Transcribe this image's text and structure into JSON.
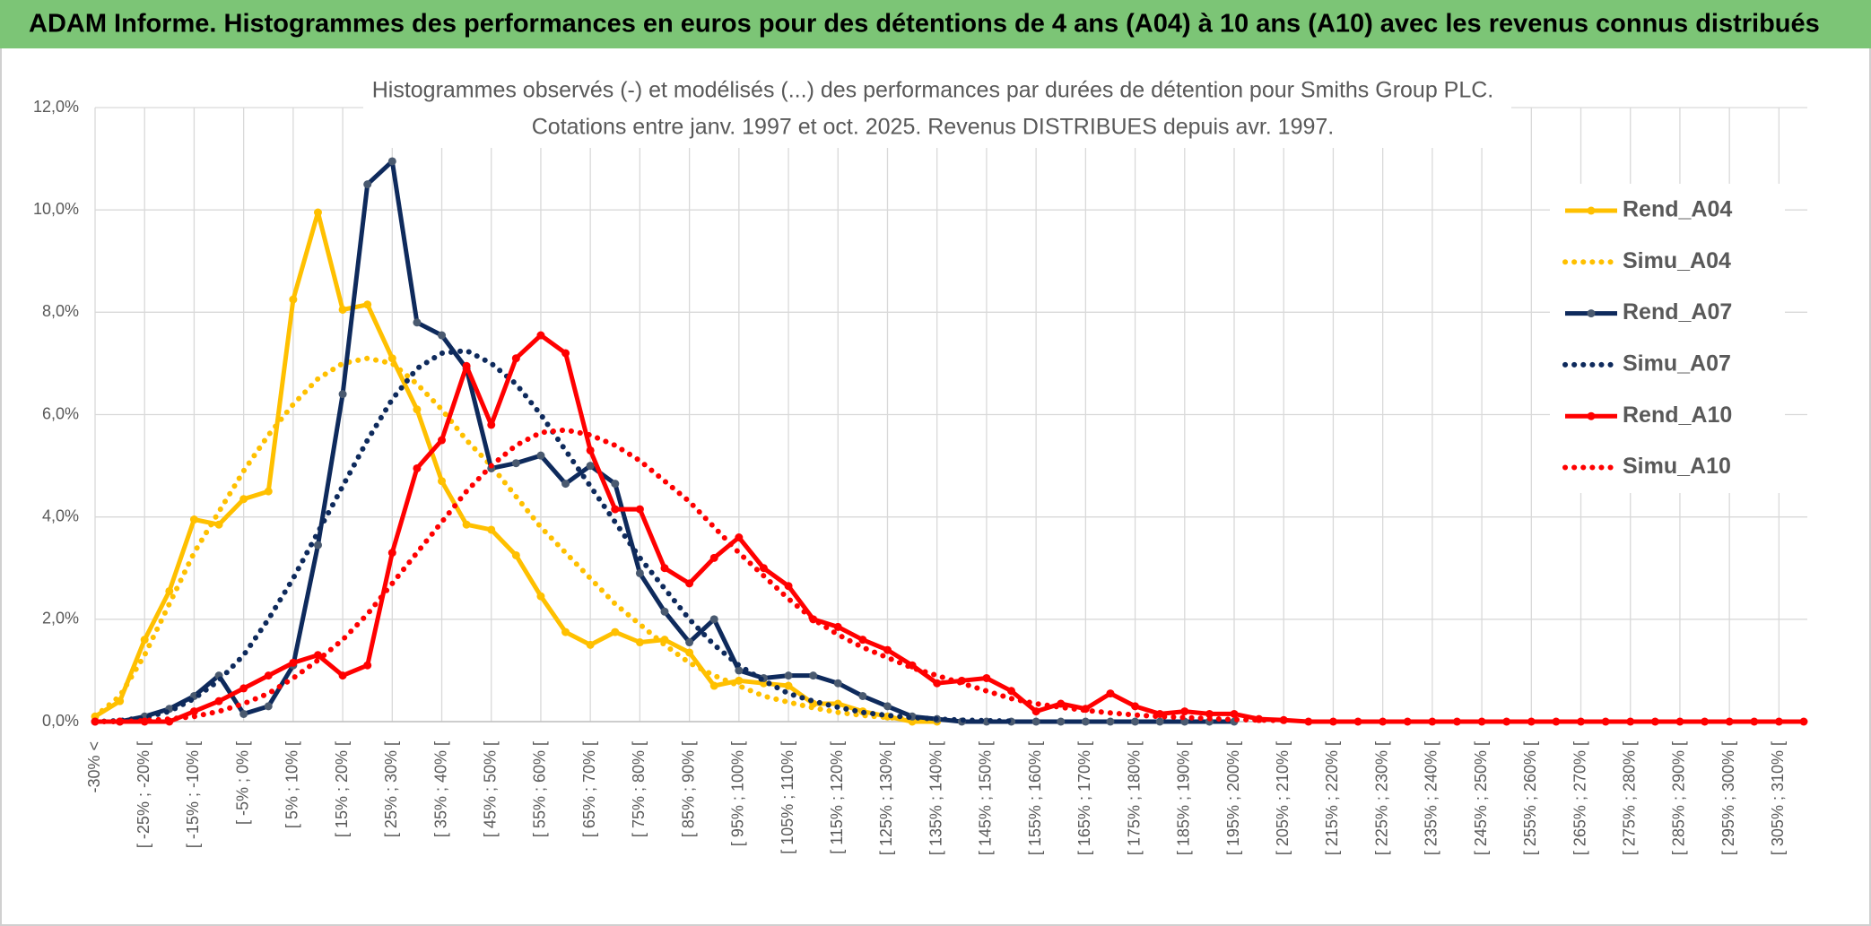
{
  "header": {
    "title": "ADAM Informe. Histogrammes des performances en euros pour des détentions de 4 ans (A04) à 10 ans (A10) avec les revenus connus distribués"
  },
  "chart_data": {
    "type": "line",
    "title": "Histogrammes observés (-) et modélisés (...) des performances par durées de détention pour Smiths Group PLC.",
    "subtitle": "Cotations entre janv. 1997 et oct. 2025. Revenus DISTRIBUES depuis avr. 1997.",
    "categories": [
      "-30% <",
      null,
      "[ -25% ; -20% [",
      null,
      "[ -15% ; -10% [",
      null,
      "[ -5% ; 0% [",
      null,
      "[ 5% ; 10% [",
      null,
      "[ 15% ; 20% [",
      null,
      "[ 25% ; 30% [",
      null,
      "[ 35% ; 40% [",
      null,
      "[ 45% ; 50% [",
      null,
      "[ 55% ; 60% [",
      null,
      "[ 65% ; 70% [",
      null,
      "[ 75% ; 80% [",
      null,
      "[ 85% ; 90% [",
      null,
      "[ 95% ; 100% [",
      null,
      "[ 105% ; 110% [",
      null,
      "[ 115% ; 120% [",
      null,
      "[ 125% ; 130% [",
      null,
      "[ 135% ; 140% [",
      null,
      "[ 145% ; 150% [",
      null,
      "[ 155% ; 160% [",
      null,
      "[ 165% ; 170% [",
      null,
      "[ 175% ; 180% [",
      null,
      "[ 185% ; 190% [",
      null,
      "[ 195% ; 200% [",
      null,
      "[ 205% ; 210% [",
      null,
      "[ 215% ; 220% [",
      null,
      "[ 225% ; 230% [",
      null,
      "[ 235% ; 240% [",
      null,
      "[ 245% ; 250% [",
      null,
      "[ 255% ; 260% [",
      null,
      "[ 265% ; 270% [",
      null,
      "[ 275% ; 280% [",
      null,
      "[ 285% ; 290% [",
      null,
      "[ 295% ; 300% [",
      null,
      "[ 305% ; 310% [",
      null
    ],
    "series": [
      {
        "name": "Rend_A04",
        "color": "#ffc000",
        "style": "solid",
        "markers": true,
        "values": [
          0.1,
          0.4,
          1.6,
          2.55,
          3.95,
          3.85,
          4.35,
          4.5,
          8.25,
          9.95,
          8.05,
          8.15,
          7.1,
          6.1,
          4.7,
          3.85,
          3.75,
          3.25,
          2.45,
          1.75,
          1.5,
          1.75,
          1.55,
          1.6,
          1.35,
          0.7,
          0.8,
          0.75,
          0.7,
          0.35,
          0.35,
          0.2,
          0.1,
          0,
          0,
          null,
          null,
          null,
          null,
          null,
          null,
          null,
          null,
          null,
          null,
          null,
          null,
          null,
          null,
          null,
          null,
          null,
          null,
          null,
          null,
          null,
          null,
          null,
          null,
          null,
          null,
          null,
          null,
          null,
          null,
          null,
          null,
          null,
          null,
          null
        ]
      },
      {
        "name": "Simu_A04",
        "color": "#ffc000",
        "style": "dotted",
        "markers": false,
        "values": [
          0.1,
          0.5,
          1.3,
          2.3,
          3.3,
          4.1,
          4.9,
          5.6,
          6.2,
          6.7,
          7.0,
          7.1,
          7.0,
          6.6,
          6.1,
          5.5,
          5.0,
          4.4,
          3.8,
          3.3,
          2.8,
          2.3,
          1.9,
          1.5,
          1.15,
          0.9,
          0.7,
          0.5,
          0.38,
          0.27,
          0.18,
          0.12,
          0.08,
          0.05,
          0.03,
          null,
          null,
          null,
          null,
          null,
          null,
          null,
          null,
          null,
          null,
          null,
          null,
          null,
          null,
          null,
          null,
          null,
          null,
          null,
          null,
          null,
          null,
          null,
          null,
          null,
          null,
          null,
          null,
          null,
          null,
          null,
          null,
          null,
          null,
          null
        ]
      },
      {
        "name": "Rend_A07",
        "color": "#0e2a5c",
        "style": "solid",
        "markers": true,
        "values": [
          0,
          0,
          0.1,
          0.25,
          0.5,
          0.9,
          0.15,
          0.3,
          1.1,
          3.45,
          6.4,
          10.5,
          10.95,
          7.8,
          7.55,
          6.9,
          4.95,
          5.05,
          5.2,
          4.65,
          5.0,
          4.65,
          2.9,
          2.15,
          1.55,
          2.0,
          1.0,
          0.85,
          0.9,
          0.9,
          0.75,
          0.5,
          0.3,
          0.1,
          0.05,
          0,
          0,
          0,
          0,
          0,
          0,
          0,
          0,
          0,
          0,
          0,
          0,
          null,
          null,
          null,
          null,
          null,
          null,
          null,
          null,
          null,
          null,
          null,
          null,
          null,
          null,
          null,
          null,
          null,
          null,
          null,
          null,
          null,
          null,
          null
        ]
      },
      {
        "name": "Simu_A07",
        "color": "#0e2a5c",
        "style": "dotted",
        "markers": false,
        "values": [
          0,
          0.02,
          0.08,
          0.2,
          0.45,
          0.8,
          1.3,
          2.0,
          2.8,
          3.7,
          4.6,
          5.5,
          6.3,
          6.9,
          7.2,
          7.25,
          7.0,
          6.6,
          6.0,
          5.3,
          4.6,
          3.9,
          3.2,
          2.6,
          2.0,
          1.5,
          1.1,
          0.8,
          0.55,
          0.4,
          0.28,
          0.18,
          0.12,
          0.08,
          0.05,
          0.03,
          0.02,
          0.01,
          null,
          null,
          null,
          null,
          null,
          null,
          null,
          null,
          null,
          null,
          null,
          null,
          null,
          null,
          null,
          null,
          null,
          null,
          null,
          null,
          null,
          null,
          null,
          null,
          null,
          null,
          null,
          null,
          null,
          null,
          null,
          null
        ]
      },
      {
        "name": "Rend_A10",
        "color": "#ff0000",
        "style": "solid",
        "markers": true,
        "values": [
          0,
          0,
          0,
          0,
          0.2,
          0.4,
          0.65,
          0.9,
          1.15,
          1.3,
          0.9,
          1.1,
          3.3,
          4.95,
          5.5,
          6.95,
          5.8,
          7.1,
          7.55,
          7.2,
          5.3,
          4.15,
          4.15,
          3.0,
          2.7,
          3.2,
          3.6,
          3.0,
          2.65,
          2.0,
          1.85,
          1.6,
          1.4,
          1.1,
          0.75,
          0.8,
          0.85,
          0.6,
          0.2,
          0.35,
          0.25,
          0.55,
          0.3,
          0.15,
          0.2,
          0.15,
          0.15,
          0.05,
          0.03,
          0,
          0,
          0,
          0,
          0,
          0,
          0,
          0,
          0,
          0,
          0,
          0,
          0,
          0,
          0,
          0,
          0,
          0,
          0,
          0,
          0
        ]
      },
      {
        "name": "Simu_A10",
        "color": "#ff0000",
        "style": "dotted",
        "markers": false,
        "values": [
          0,
          0,
          0.02,
          0.05,
          0.1,
          0.2,
          0.35,
          0.55,
          0.85,
          1.2,
          1.6,
          2.1,
          2.7,
          3.3,
          3.9,
          4.5,
          5.0,
          5.4,
          5.65,
          5.7,
          5.6,
          5.4,
          5.1,
          4.7,
          4.3,
          3.8,
          3.3,
          2.85,
          2.4,
          2.0,
          1.7,
          1.45,
          1.25,
          1.05,
          0.9,
          0.75,
          0.6,
          0.45,
          0.35,
          0.28,
          0.22,
          0.17,
          0.13,
          0.1,
          0.08,
          0.06,
          0.04,
          0.03,
          0.02,
          null,
          null,
          null,
          null,
          null,
          null,
          null,
          null,
          null,
          null,
          null,
          null,
          null,
          null,
          null,
          null,
          null,
          null,
          null,
          null,
          null
        ]
      }
    ],
    "ylim": [
      0,
      12
    ],
    "yticks": [
      {
        "value": 0,
        "label": "0,0%"
      },
      {
        "value": 2,
        "label": "2,0%"
      },
      {
        "value": 4,
        "label": "4,0%"
      },
      {
        "value": 6,
        "label": "6,0%"
      },
      {
        "value": 8,
        "label": "8,0%"
      },
      {
        "value": 10,
        "label": "10,0%"
      },
      {
        "value": 12,
        "label": "12,0%"
      }
    ],
    "grid": true,
    "legend": "right"
  }
}
